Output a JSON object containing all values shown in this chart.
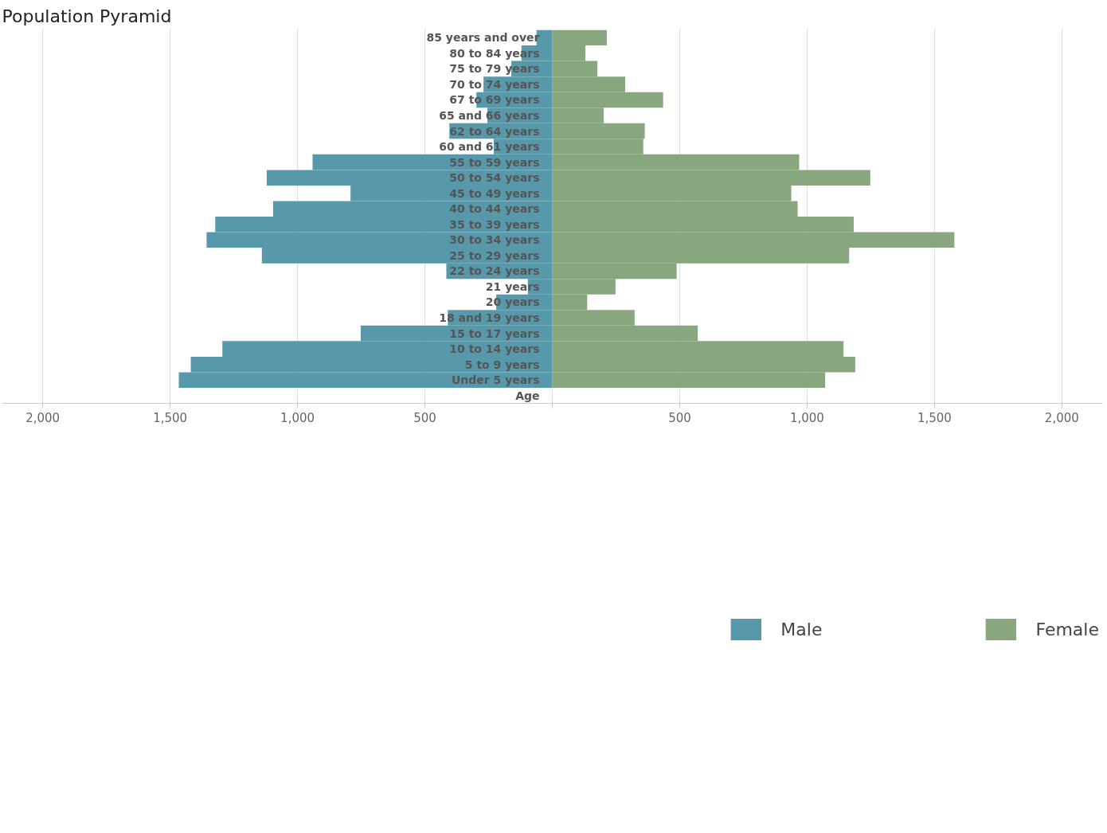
{
  "chart_data": {
    "type": "bar",
    "orientation": "horizontal",
    "title": "Population Pyramid",
    "annotations": [
      "Age"
    ],
    "stacked": true,
    "categories": [
      "85 years and over",
      "80 to 84 years",
      "75 to 79 years",
      "70 to 74 years",
      "67 to 69 years",
      "65 and 66 years",
      "62 to 64 years",
      "60 and 61 years",
      "55 to 59 years",
      "50 to 54 years",
      "45 to 49 years",
      "40 to 44 years",
      "35 to 39 years",
      "30 to 34 years",
      "25 to 29 years",
      "22 to 24 years",
      "21 years",
      "20 years",
      "18 and 19 years",
      "15 to 17 years",
      "10 to 14 years",
      "5 to 9 years",
      "Under 5 years"
    ],
    "series": [
      {
        "name": "Male",
        "color": "#5799aa",
        "values": [
          -62,
          -121,
          -161,
          -270,
          -298,
          -255,
          -404,
          -230,
          -941,
          -1121,
          -792,
          -1096,
          -1323,
          -1357,
          -1140,
          -416,
          -96,
          -220,
          -410,
          -752,
          -1295,
          -1419,
          -1466
        ]
      },
      {
        "name": "Female",
        "color": "#88a77f",
        "values": [
          214,
          130,
          177,
          286,
          435,
          202,
          363,
          357,
          969,
          1248,
          938,
          963,
          1183,
          1578,
          1165,
          488,
          248,
          137,
          323,
          571,
          1143,
          1189,
          1071
        ]
      }
    ],
    "xlim": [
      -2160,
      2160
    ],
    "xticks": [
      {
        "value": -2000,
        "label": "2,000"
      },
      {
        "value": -1500,
        "label": "1,500"
      },
      {
        "value": -1000,
        "label": "1,000"
      },
      {
        "value": -500,
        "label": "500"
      },
      {
        "value": 0,
        "label": null
      },
      {
        "value": 500,
        "label": "500"
      },
      {
        "value": 1000,
        "label": "1,000"
      },
      {
        "value": 1500,
        "label": "1,500"
      },
      {
        "value": 2000,
        "label": "2,000"
      }
    ],
    "grid": "x",
    "legend": "bottom"
  }
}
